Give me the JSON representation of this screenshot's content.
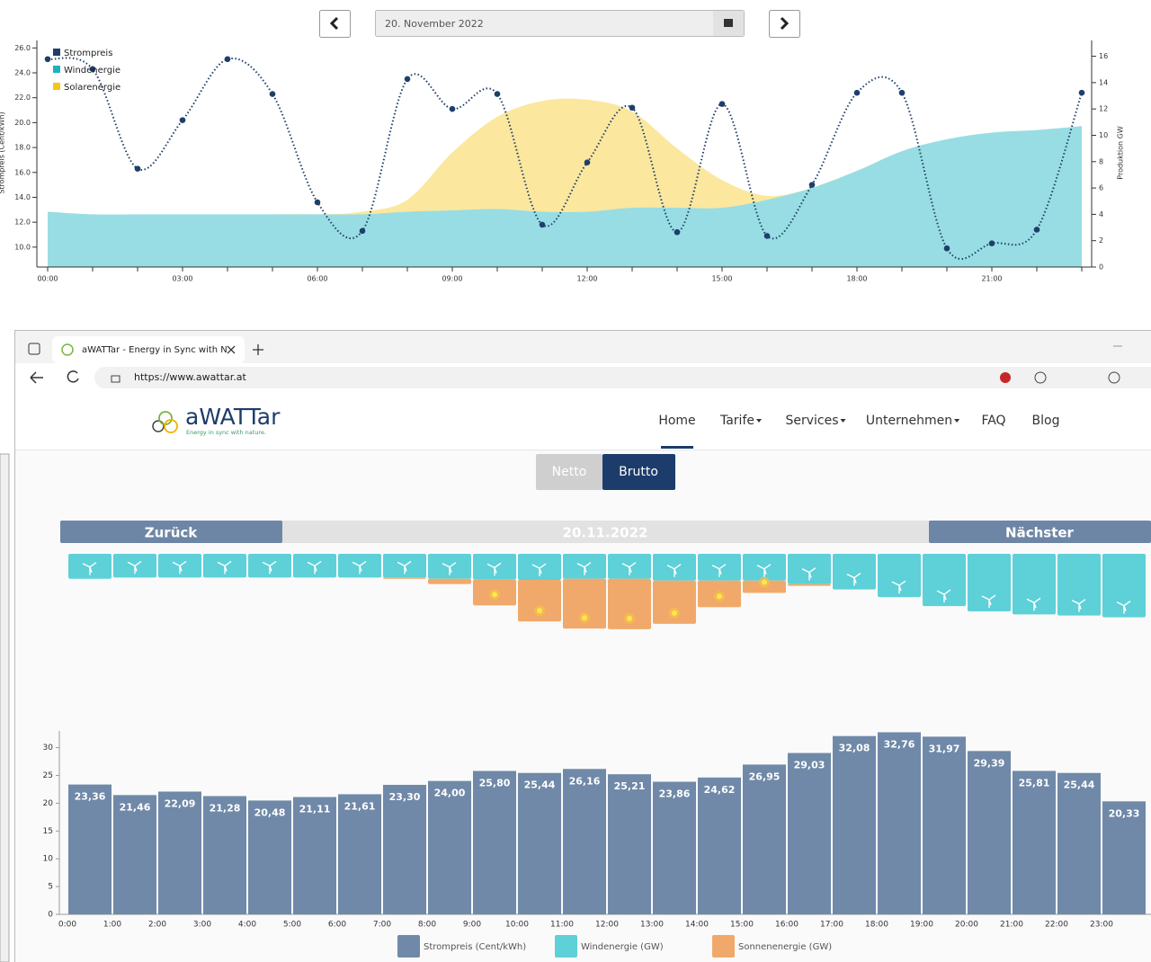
{
  "date_picker": {
    "value": "20. November 2022"
  },
  "browser": {
    "tab_title": "aWATTar - Energy in Sync with N",
    "url": "https://www.awattar.at"
  },
  "site": {
    "logo": "aWATTar",
    "tagline": "Energy in sync with nature.",
    "nav": [
      "Home",
      "Tarife",
      "Services",
      "Unternehmen",
      "FAQ",
      "Blog"
    ],
    "toggle": [
      "Netto",
      "Brutto"
    ],
    "date_nav": {
      "prev": "Zurück",
      "date": "20.11.2022",
      "next": "Nächster"
    }
  },
  "chart_data": [
    {
      "type": "line",
      "ylabel": "Strompreis (Cent/kWh)",
      "y2label": "Produktion GW",
      "stacked": true,
      "categories": [
        "00:00",
        null,
        null,
        "03:00",
        null,
        null,
        "06:00",
        null,
        null,
        "09:00",
        null,
        null,
        "12:00",
        null,
        null,
        "15:00",
        null,
        null,
        "18:00",
        null,
        null,
        "21:00",
        null,
        null
      ],
      "ylim": [
        8.4,
        26.6
      ],
      "yticks": [
        {
          "value": 10,
          "label": "10.0"
        },
        {
          "value": 12,
          "label": "12.0"
        },
        {
          "value": 14,
          "label": "14.0"
        },
        {
          "value": 16,
          "label": "16.0"
        },
        {
          "value": 18,
          "label": "18.0"
        },
        {
          "value": 20,
          "label": "20.0"
        },
        {
          "value": 22,
          "label": "22.0"
        },
        {
          "value": 24,
          "label": "24.0"
        },
        {
          "value": 26,
          "label": "26.0"
        }
      ],
      "y2lim": [
        0,
        17.2
      ],
      "y2ticks": [
        0,
        2,
        4,
        6,
        8,
        10,
        12,
        14,
        16
      ],
      "series": [
        {
          "name": "Strompreis",
          "color": "#1f3f6b",
          "values": [
            25.1,
            24.3,
            16.3,
            20.2,
            25.1,
            22.3,
            13.6,
            11.3,
            23.5,
            21.1,
            22.3,
            11.8,
            16.8,
            21.2,
            11.2,
            21.5,
            10.9,
            15.0,
            22.4,
            22.4,
            9.9,
            10.3,
            11.4,
            22.4
          ]
        },
        {
          "name": "Windenergie",
          "color": "#1bb3c0",
          "axis": "y2",
          "values": [
            4.2,
            4.0,
            4.0,
            4.0,
            4.0,
            4.0,
            4.0,
            4.0,
            4.2,
            4.3,
            4.4,
            4.2,
            4.2,
            4.5,
            4.5,
            4.5,
            5.1,
            6.0,
            7.3,
            8.8,
            9.7,
            10.2,
            10.4,
            10.7
          ]
        },
        {
          "name": "Solarenergie",
          "color": "#f5c518",
          "axis": "y2",
          "values": [
            0,
            0,
            0,
            0,
            0,
            0,
            0,
            0.2,
            0.9,
            4.4,
            7.0,
            8.4,
            8.5,
            7.3,
            4.5,
            2.1,
            0.3,
            0,
            0,
            0,
            0,
            0,
            0,
            0
          ]
        }
      ]
    },
    {
      "type": "bar",
      "categories": [
        "0:00",
        "1:00",
        "2:00",
        "3:00",
        "4:00",
        "5:00",
        "6:00",
        "7:00",
        "8:00",
        "9:00",
        "10:00",
        "11:00",
        "12:00",
        "13:00",
        "14:00",
        "15:00",
        "16:00",
        "17:00",
        "18:00",
        "19:00",
        "20:00",
        "21:00",
        "22:00",
        "23:00"
      ],
      "ylim": [
        0,
        33
      ],
      "yticks": [
        0,
        5,
        10,
        15,
        20,
        25,
        30
      ],
      "series": [
        {
          "name": "Strompreis (Cent/kWh)",
          "color": "#7089a8",
          "values": [
            23.36,
            21.46,
            22.09,
            21.28,
            20.48,
            21.11,
            21.61,
            23.3,
            24.0,
            25.8,
            25.44,
            26.16,
            25.21,
            23.86,
            24.62,
            26.95,
            29.03,
            32.08,
            32.76,
            31.97,
            29.39,
            25.81,
            25.44,
            20.33
          ],
          "value_labels": [
            "23,36",
            "21,46",
            "22,09",
            "21,28",
            "20,48",
            "21,11",
            "21,61",
            "23,30",
            "24,00",
            "25,80",
            "25,44",
            "26,16",
            "25,21",
            "23,86",
            "24,62",
            "26,95",
            "29,03",
            "32,08",
            "32,76",
            "31,97",
            "29,39",
            "25,81",
            "25,44",
            "20,33"
          ]
        },
        {
          "name": "Windenergie (GW)",
          "color": "#5dd0d8",
          "values": [
            4.2,
            4.0,
            4.0,
            4.0,
            4.0,
            4.0,
            4.0,
            4.0,
            4.2,
            4.3,
            4.4,
            4.2,
            4.2,
            4.5,
            4.5,
            4.5,
            5.1,
            6.0,
            7.3,
            8.8,
            9.7,
            10.2,
            10.4,
            10.7
          ]
        },
        {
          "name": "Sonnenenergie (GW)",
          "color": "#f0a96a",
          "values": [
            0,
            0,
            0,
            0,
            0,
            0,
            0,
            0.2,
            0.9,
            4.4,
            7.0,
            8.4,
            8.5,
            7.3,
            4.5,
            2.1,
            0.3,
            0,
            0,
            0,
            0,
            0,
            0,
            0
          ]
        }
      ]
    }
  ]
}
